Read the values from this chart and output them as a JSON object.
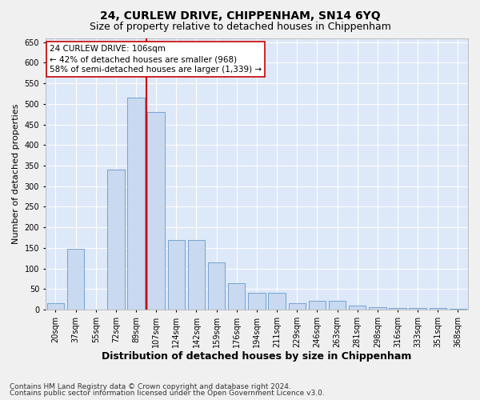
{
  "title": "24, CURLEW DRIVE, CHIPPENHAM, SN14 6YQ",
  "subtitle": "Size of property relative to detached houses in Chippenham",
  "xlabel": "Distribution of detached houses by size in Chippenham",
  "ylabel": "Number of detached properties",
  "categories": [
    "20sqm",
    "37sqm",
    "55sqm",
    "72sqm",
    "89sqm",
    "107sqm",
    "124sqm",
    "142sqm",
    "159sqm",
    "176sqm",
    "194sqm",
    "211sqm",
    "229sqm",
    "246sqm",
    "263sqm",
    "281sqm",
    "298sqm",
    "316sqm",
    "333sqm",
    "351sqm",
    "368sqm"
  ],
  "values": [
    15,
    148,
    0,
    340,
    515,
    480,
    170,
    170,
    115,
    65,
    40,
    40,
    15,
    22,
    22,
    10,
    5,
    3,
    3,
    3,
    2
  ],
  "bar_color": "#c8d9f0",
  "bar_edge_color": "#6699cc",
  "marker_line_color": "#cc0000",
  "annotation_text": "24 CURLEW DRIVE: 106sqm\n← 42% of detached houses are smaller (968)\n58% of semi-detached houses are larger (1,339) →",
  "annotation_box_color": "#ffffff",
  "annotation_box_edge_color": "#cc0000",
  "ylim": [
    0,
    660
  ],
  "yticks": [
    0,
    50,
    100,
    150,
    200,
    250,
    300,
    350,
    400,
    450,
    500,
    550,
    600,
    650
  ],
  "footer1": "Contains HM Land Registry data © Crown copyright and database right 2024.",
  "footer2": "Contains public sector information licensed under the Open Government Licence v3.0.",
  "bg_color": "#dde8f8",
  "fig_color": "#f0f0f0",
  "grid_color": "#ffffff",
  "title_fontsize": 10,
  "subtitle_fontsize": 9,
  "axis_label_fontsize": 8,
  "tick_fontsize": 7,
  "annotation_fontsize": 7.5,
  "footer_fontsize": 6.5
}
